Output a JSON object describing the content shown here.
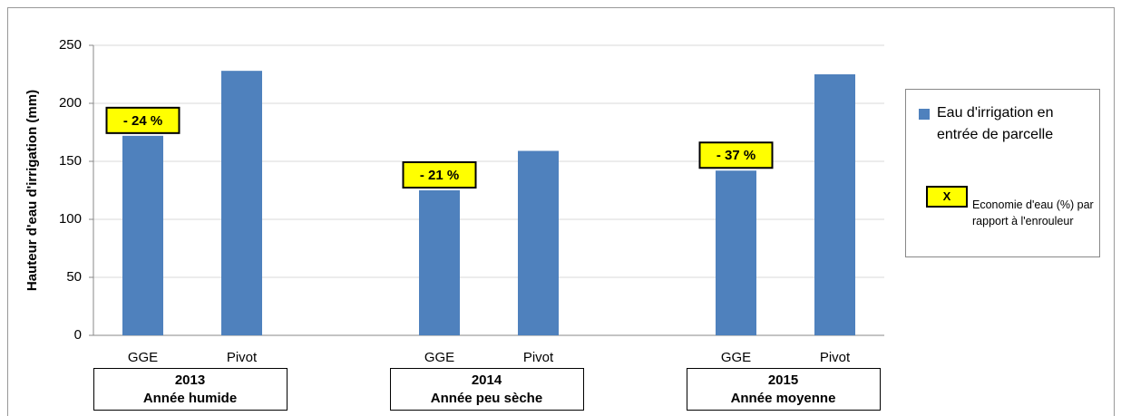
{
  "chart_data": {
    "type": "bar",
    "y_label": "Hauteur d'eau d'irrigation (mm)",
    "categories": [
      "GGE",
      "Pivot",
      null,
      "GGE",
      "Pivot",
      null,
      "GGE",
      "Pivot"
    ],
    "series": [
      {
        "name": "Eau d'irrigation en entrée de parcelle",
        "color": "#4f81bd",
        "values": [
          172,
          228,
          null,
          125,
          159,
          null,
          142,
          225
        ]
      }
    ],
    "annotations": [
      "- 24 %",
      null,
      null,
      "- 21 %",
      null,
      null,
      "- 37 %",
      null
    ],
    "groups": [
      {
        "year": "2013",
        "label": "Année humide"
      },
      {
        "year": "2014",
        "label": "Année peu sèche"
      },
      {
        "year": "2015",
        "label": "Année moyenne"
      }
    ],
    "legend_note": {
      "symbol": "X",
      "text": "Economie d'eau (%) par rapport à l'enrouleur"
    },
    "ylim": [
      0,
      250
    ],
    "yticks": [
      0,
      50,
      100,
      150,
      200,
      250
    ],
    "grid": true
  }
}
